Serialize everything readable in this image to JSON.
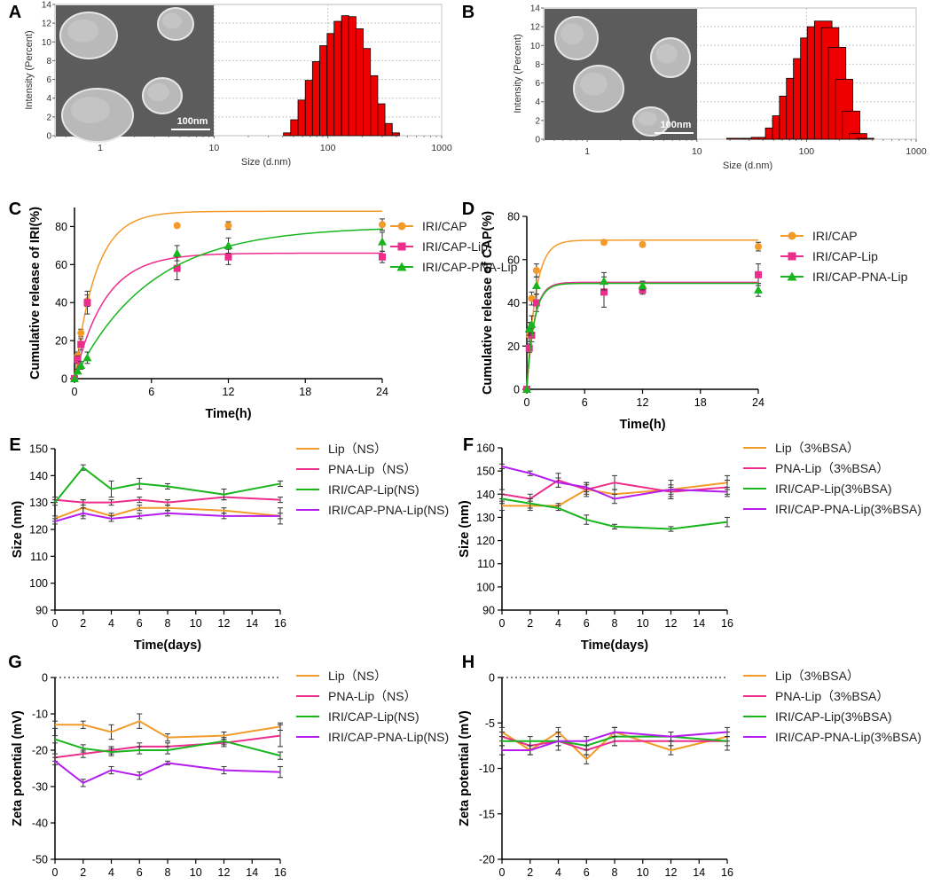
{
  "colors": {
    "orange": "#f39b2a",
    "pink": "#ec2d8c",
    "green": "#18b51e",
    "magenta": "#b51cf0",
    "red_bar": "#ee0000",
    "grid": "#c8c8c8",
    "axis": "#000000"
  },
  "chart_data": [
    {
      "id": "A",
      "label": "A",
      "type": "bar",
      "title": "",
      "xlabel": "Size (d.nm)",
      "ylabel": "Intensity (Percent)",
      "xscale": "log",
      "xlim": [
        0.4,
        1000
      ],
      "ylim": [
        0,
        14
      ],
      "x_ticks": [
        "1",
        "10",
        "100",
        "1000"
      ],
      "y_ticks": [
        "0",
        "2",
        "4",
        "6",
        "8",
        "10",
        "12",
        "14"
      ],
      "x": [
        43.8,
        50.7,
        58.8,
        68.1,
        78.8,
        91.3,
        106,
        122,
        142,
        164,
        190,
        220,
        255,
        295,
        342,
        396
      ],
      "values": [
        0.3,
        1.7,
        3.8,
        5.9,
        7.9,
        9.6,
        10.9,
        12.2,
        12.8,
        12.7,
        11.4,
        9.3,
        6.4,
        3.4,
        1.3,
        0.3
      ],
      "image_scale": "100nm"
    },
    {
      "id": "B",
      "label": "B",
      "type": "bar",
      "title": "",
      "xlabel": "Size (d.nm)",
      "ylabel": "Intensity (Percent)",
      "xscale": "log",
      "xlim": [
        0.4,
        1000
      ],
      "ylim": [
        0,
        14
      ],
      "x_ticks": [
        "1",
        "10",
        "100",
        "1000"
      ],
      "y_ticks": [
        "0",
        "2",
        "4",
        "6",
        "8",
        "10",
        "12",
        "14"
      ],
      "x": [
        22.5,
        32.5,
        37.7,
        43.8,
        50.7,
        58.8,
        68.1,
        78.8,
        91.3,
        106,
        122,
        142,
        164,
        190,
        220,
        255,
        295,
        342
      ],
      "values": [
        0.1,
        0.1,
        0.2,
        0.2,
        1.2,
        2.5,
        4.6,
        6.5,
        8.6,
        10.8,
        12.0,
        12.6,
        11.9,
        9.8,
        6.4,
        3.0,
        0.6,
        0.1
      ],
      "image_scale": "100nm"
    },
    {
      "id": "C",
      "label": "C",
      "type": "line",
      "title": "",
      "xlabel": "Time(h)",
      "ylabel": "Cumulative release of IRI(%)",
      "xlim": [
        0,
        24
      ],
      "ylim": [
        0,
        90
      ],
      "x_ticks": [
        "0",
        "6",
        "12",
        "18",
        "24"
      ],
      "y_ticks": [
        "0",
        "20",
        "40",
        "60",
        "80"
      ],
      "series": [
        {
          "name": "IRI/CAP",
          "color": "orange",
          "marker": "circle",
          "x": [
            0,
            0.25,
            0.5,
            1,
            8,
            12,
            24
          ],
          "y": [
            0,
            12,
            24,
            41,
            80.5,
            80.5,
            81
          ],
          "err": [
            0,
            2,
            2,
            3,
            1,
            2,
            3
          ],
          "fit_k": 0.6,
          "fit_top": 88
        },
        {
          "name": "IRI/CAP-Lip",
          "color": "pink",
          "marker": "square",
          "x": [
            0,
            0.25,
            0.5,
            1,
            8,
            12,
            24
          ],
          "y": [
            0,
            10,
            18,
            40,
            58,
            64,
            64
          ],
          "err": [
            0,
            2,
            3,
            6,
            6,
            4,
            3
          ],
          "fit_k": 0.42,
          "fit_top": 66
        },
        {
          "name": "IRI/CAP-PNA-Lip",
          "color": "green",
          "marker": "triangle",
          "x": [
            0,
            0.25,
            0.5,
            1,
            8,
            12,
            24
          ],
          "y": [
            0,
            4,
            7,
            11,
            66,
            70,
            72
          ],
          "err": [
            0,
            1,
            2,
            3,
            4,
            4,
            5
          ],
          "fit_k": 0.17,
          "fit_top": 80
        }
      ]
    },
    {
      "id": "D",
      "label": "D",
      "type": "line",
      "title": "",
      "xlabel": "Time(h)",
      "ylabel": "Cumulative release of CAP(%)",
      "xlim": [
        0,
        24
      ],
      "ylim": [
        0,
        80
      ],
      "x_ticks": [
        "0",
        "6",
        "12",
        "18",
        "24"
      ],
      "y_ticks": [
        "0",
        "20",
        "40",
        "60",
        "80"
      ],
      "series": [
        {
          "name": "IRI/CAP",
          "color": "orange",
          "marker": "circle",
          "x": [
            0,
            0.25,
            0.5,
            1,
            8,
            12,
            24
          ],
          "y": [
            0,
            25,
            42,
            55,
            68,
            67,
            66
          ],
          "err": [
            0,
            3,
            3,
            3,
            1,
            1,
            2
          ],
          "fit_k": 1.1,
          "fit_top": 69
        },
        {
          "name": "IRI/CAP-Lip",
          "color": "pink",
          "marker": "square",
          "x": [
            0,
            0.25,
            0.5,
            1,
            8,
            12,
            24
          ],
          "y": [
            0,
            19,
            25,
            40,
            45,
            46,
            53
          ],
          "err": [
            0,
            2,
            3,
            4,
            7,
            2,
            5
          ],
          "fit_k": 1.3,
          "fit_top": 49.5
        },
        {
          "name": "IRI/CAP-PNA-Lip",
          "color": "green",
          "marker": "triangle",
          "x": [
            0,
            0.25,
            0.5,
            1,
            8,
            12,
            24
          ],
          "y": [
            0,
            28,
            30,
            48,
            50,
            48,
            46
          ],
          "err": [
            0,
            3,
            4,
            4,
            4,
            2,
            3
          ],
          "fit_k": 1.3,
          "fit_top": 49
        }
      ]
    },
    {
      "id": "E",
      "label": "E",
      "type": "line",
      "title": "",
      "xlabel": "Time(days)",
      "ylabel": "Size (nm)",
      "xlim": [
        0,
        16
      ],
      "ylim": [
        90,
        150
      ],
      "x_ticks": [
        "0",
        "2",
        "4",
        "6",
        "8",
        "10",
        "12",
        "14",
        "16"
      ],
      "y_ticks": [
        "90",
        "100",
        "110",
        "120",
        "130",
        "140",
        "150"
      ],
      "series": [
        {
          "name": "Lip（NS）",
          "color": "orange",
          "x": [
            0,
            2,
            4,
            6,
            8,
            12,
            16
          ],
          "y": [
            124,
            128,
            125,
            128,
            128,
            127,
            125
          ],
          "err": [
            1,
            3,
            1,
            1,
            1,
            1,
            1
          ]
        },
        {
          "name": "PNA-Lip（NS）",
          "color": "pink",
          "x": [
            0,
            2,
            4,
            6,
            8,
            12,
            16
          ],
          "y": [
            131,
            130,
            130,
            131,
            130,
            132,
            131
          ],
          "err": [
            1,
            1,
            1,
            1,
            1,
            1,
            1
          ]
        },
        {
          "name": "IRI/CAP-Lip(NS)",
          "color": "green",
          "x": [
            0,
            2,
            4,
            6,
            8,
            12,
            16
          ],
          "y": [
            130,
            143,
            135,
            137,
            136,
            133,
            137
          ],
          "err": [
            1,
            1,
            3,
            2,
            1,
            2,
            1
          ]
        },
        {
          "name": "IRI/CAP-PNA-Lip(NS)",
          "color": "magenta",
          "x": [
            0,
            2,
            4,
            6,
            8,
            12,
            16
          ],
          "y": [
            123,
            126,
            124,
            125,
            126,
            125,
            125
          ],
          "err": [
            1,
            2,
            1,
            1,
            1,
            1,
            3
          ]
        }
      ]
    },
    {
      "id": "F",
      "label": "F",
      "type": "line",
      "title": "",
      "xlabel": "Time(days)",
      "ylabel": "Size (nm)",
      "xlim": [
        0,
        16
      ],
      "ylim": [
        90,
        160
      ],
      "x_ticks": [
        "0",
        "2",
        "4",
        "6",
        "8",
        "10",
        "12",
        "14",
        "16"
      ],
      "y_ticks": [
        "90",
        "100",
        "110",
        "120",
        "130",
        "140",
        "150",
        "160"
      ],
      "series": [
        {
          "name": "Lip（3%BSA）",
          "color": "orange",
          "x": [
            0,
            2,
            4,
            6,
            8,
            12,
            16
          ],
          "y": [
            135,
            135,
            135,
            142,
            140,
            142,
            145
          ],
          "err": [
            2,
            2,
            1,
            2,
            2,
            4,
            3
          ]
        },
        {
          "name": "PNA-Lip（3%BSA）",
          "color": "pink",
          "x": [
            0,
            2,
            4,
            6,
            8,
            12,
            16
          ],
          "y": [
            140,
            138,
            146,
            142,
            145,
            141,
            143
          ],
          "err": [
            2,
            2,
            3,
            3,
            3,
            2,
            3
          ]
        },
        {
          "name": "IRI/CAP-Lip(3%BSA)",
          "color": "green",
          "x": [
            0,
            2,
            4,
            6,
            8,
            12,
            16
          ],
          "y": [
            138,
            136,
            134,
            129,
            126,
            125,
            128
          ],
          "err": [
            2,
            2,
            1,
            2,
            1,
            1,
            2
          ]
        },
        {
          "name": "IRI/CAP-PNA-Lip(3%BSA)",
          "color": "magenta",
          "x": [
            0,
            2,
            4,
            6,
            8,
            12,
            16
          ],
          "y": [
            152,
            149,
            145,
            143,
            138,
            142,
            141
          ],
          "err": [
            1,
            1,
            2,
            2,
            2,
            2,
            2
          ]
        }
      ]
    },
    {
      "id": "G",
      "label": "G",
      "type": "line",
      "title": "",
      "xlabel": "Time(days)",
      "ylabel": "Zeta potential (mV)",
      "xlim": [
        0,
        16
      ],
      "ylim": [
        -50,
        0
      ],
      "zero_line": true,
      "x_ticks": [
        "0",
        "2",
        "4",
        "6",
        "8",
        "10",
        "12",
        "14",
        "16"
      ],
      "y_ticks": [
        "-50",
        "-40",
        "-30",
        "-20",
        "-10",
        "0"
      ],
      "series": [
        {
          "name": "Lip（NS）",
          "color": "orange",
          "x": [
            0,
            2,
            4,
            6,
            8,
            12,
            16
          ],
          "y": [
            -13,
            -13,
            -15,
            -12,
            -16.5,
            -16,
            -13.5
          ],
          "err": [
            1,
            1,
            2,
            2,
            1,
            1,
            1
          ]
        },
        {
          "name": "PNA-Lip（NS）",
          "color": "pink",
          "x": [
            0,
            2,
            4,
            6,
            8,
            12,
            16
          ],
          "y": [
            -22,
            -21,
            -20,
            -19,
            -19,
            -18,
            -16
          ],
          "err": [
            1,
            1,
            1,
            1,
            1,
            1,
            3
          ]
        },
        {
          "name": "IRI/CAP-Lip(NS)",
          "color": "green",
          "x": [
            0,
            2,
            4,
            6,
            8,
            12,
            16
          ],
          "y": [
            -17,
            -19.5,
            -20.5,
            -20,
            -20,
            -17.5,
            -21.5
          ],
          "err": [
            1,
            1,
            1,
            1,
            1,
            1,
            1
          ]
        },
        {
          "name": "IRI/CAP-PNA-Lip(NS)",
          "color": "magenta",
          "x": [
            0,
            2,
            4,
            6,
            8,
            12,
            16
          ],
          "y": [
            -23,
            -29,
            -25.5,
            -27,
            -23.5,
            -25.5,
            -26
          ],
          "err": [
            1,
            1,
            1,
            1,
            0.5,
            1,
            1.5
          ]
        }
      ]
    },
    {
      "id": "H",
      "label": "H",
      "type": "line",
      "title": "",
      "xlabel": "Time(days)",
      "ylabel": "Zeta potential (mV)",
      "xlim": [
        0,
        16
      ],
      "ylim": [
        -20,
        0
      ],
      "zero_line": true,
      "x_ticks": [
        "0",
        "2",
        "4",
        "6",
        "8",
        "10",
        "12",
        "14",
        "16"
      ],
      "y_ticks": [
        "-20",
        "-15",
        "-10",
        "-5",
        "0"
      ],
      "series": [
        {
          "name": "Lip（3%BSA）",
          "color": "orange",
          "x": [
            0,
            2,
            4,
            6,
            8,
            12,
            16
          ],
          "y": [
            -6,
            -8,
            -6,
            -9,
            -6,
            -8,
            -6.5
          ],
          "err": [
            0.5,
            0.5,
            0.5,
            0.5,
            0.5,
            0.5,
            0.5
          ]
        },
        {
          "name": "PNA-Lip（3%BSA）",
          "color": "pink",
          "x": [
            0,
            2,
            4,
            6,
            8,
            12,
            16
          ],
          "y": [
            -6.5,
            -7.5,
            -7,
            -8,
            -7,
            -7,
            -7
          ],
          "err": [
            0.5,
            0.5,
            0.5,
            0.5,
            0.5,
            0.5,
            0.5
          ]
        },
        {
          "name": "IRI/CAP-Lip(3%BSA)",
          "color": "green",
          "x": [
            0,
            2,
            4,
            6,
            8,
            12,
            16
          ],
          "y": [
            -7,
            -7,
            -7,
            -7.5,
            -6.5,
            -6.5,
            -7
          ],
          "err": [
            0.5,
            0.5,
            0.5,
            0.5,
            1,
            0.5,
            1
          ]
        },
        {
          "name": "IRI/CAP-PNA-Lip(3%BSA)",
          "color": "magenta",
          "x": [
            0,
            2,
            4,
            6,
            8,
            12,
            16
          ],
          "y": [
            -8,
            -8,
            -7,
            -7,
            -6,
            -6.5,
            -6
          ],
          "err": [
            0.5,
            0.5,
            1,
            0.5,
            0.5,
            0.5,
            0.5
          ]
        }
      ]
    }
  ]
}
